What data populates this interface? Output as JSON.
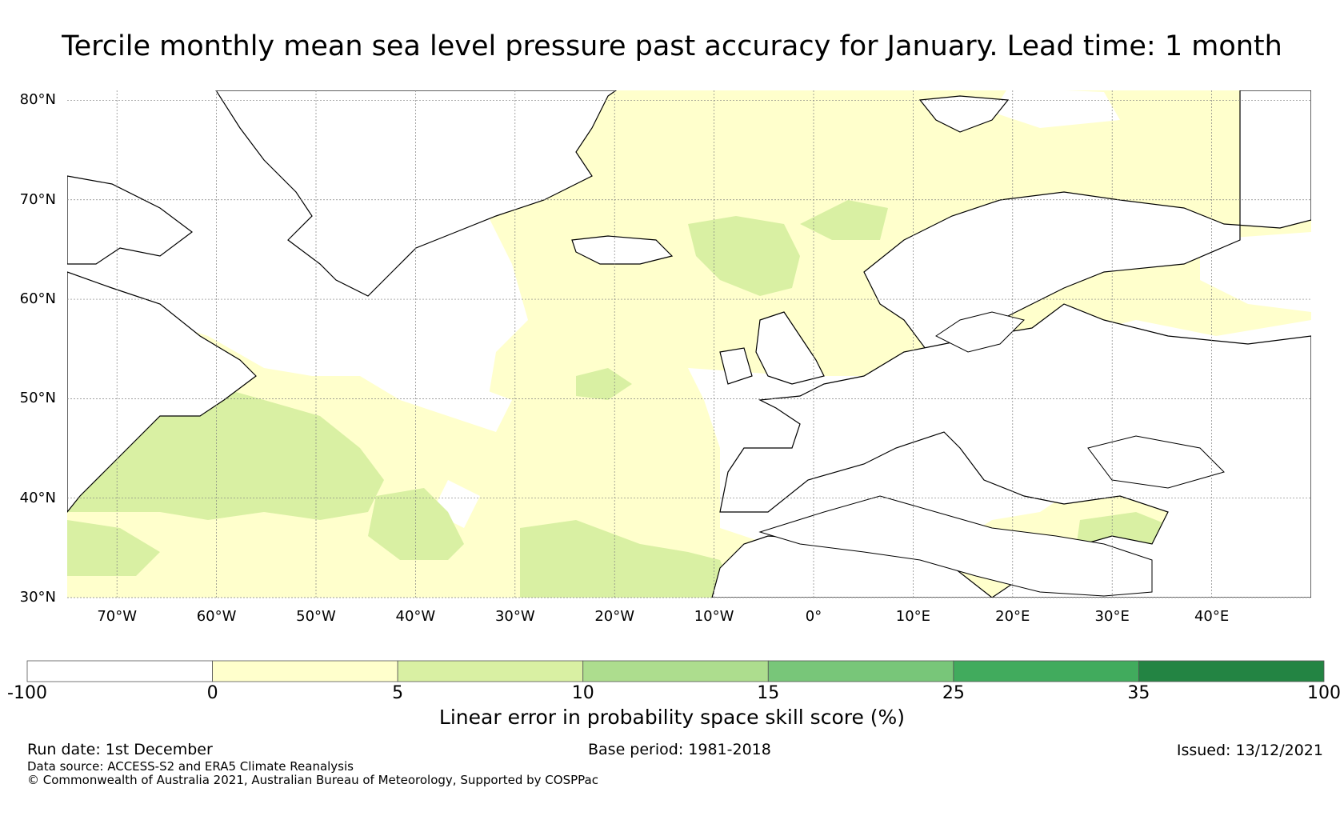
{
  "title": "Tercile monthly mean sea level pressure past accuracy for January. Lead time: 1 month",
  "map": {
    "lat_labels": [
      "80°N",
      "70°N",
      "60°N",
      "50°N",
      "40°N",
      "30°N"
    ],
    "lon_labels": [
      "70°W",
      "60°W",
      "50°W",
      "40°W",
      "30°W",
      "20°W",
      "10°W",
      "0°",
      "10°E",
      "20°E",
      "30°E",
      "40°E"
    ],
    "extent": {
      "lon_min": -75,
      "lon_max": 50,
      "lat_min": 30,
      "lat_max": 81
    },
    "colors": {
      "ocean_skill_low": "#ffffcc",
      "ocean_skill_mid": "#d9f0a3",
      "land": "#ffffff",
      "coast": "#000000"
    }
  },
  "colorbar": {
    "ticks": [
      "-100",
      "0",
      "5",
      "10",
      "15",
      "25",
      "35",
      "100"
    ],
    "colors": [
      "#ffffff",
      "#ffffcc",
      "#d9f0a3",
      "#addd8e",
      "#78c679",
      "#41ab5d",
      "#238443"
    ],
    "label": "Linear error in probability space skill score (%)"
  },
  "footer": {
    "run_date": "Run date: 1st December",
    "base_period": "Base period: 1981-2018",
    "issued": "Issued: 13/12/2021",
    "data_source": "Data source: ACCESS-S2 and ERA5 Climate Reanalysis",
    "copyright": "© Commonwealth of Australia 2021, Australian Bureau of Meteorology, Supported by COSPPac"
  }
}
